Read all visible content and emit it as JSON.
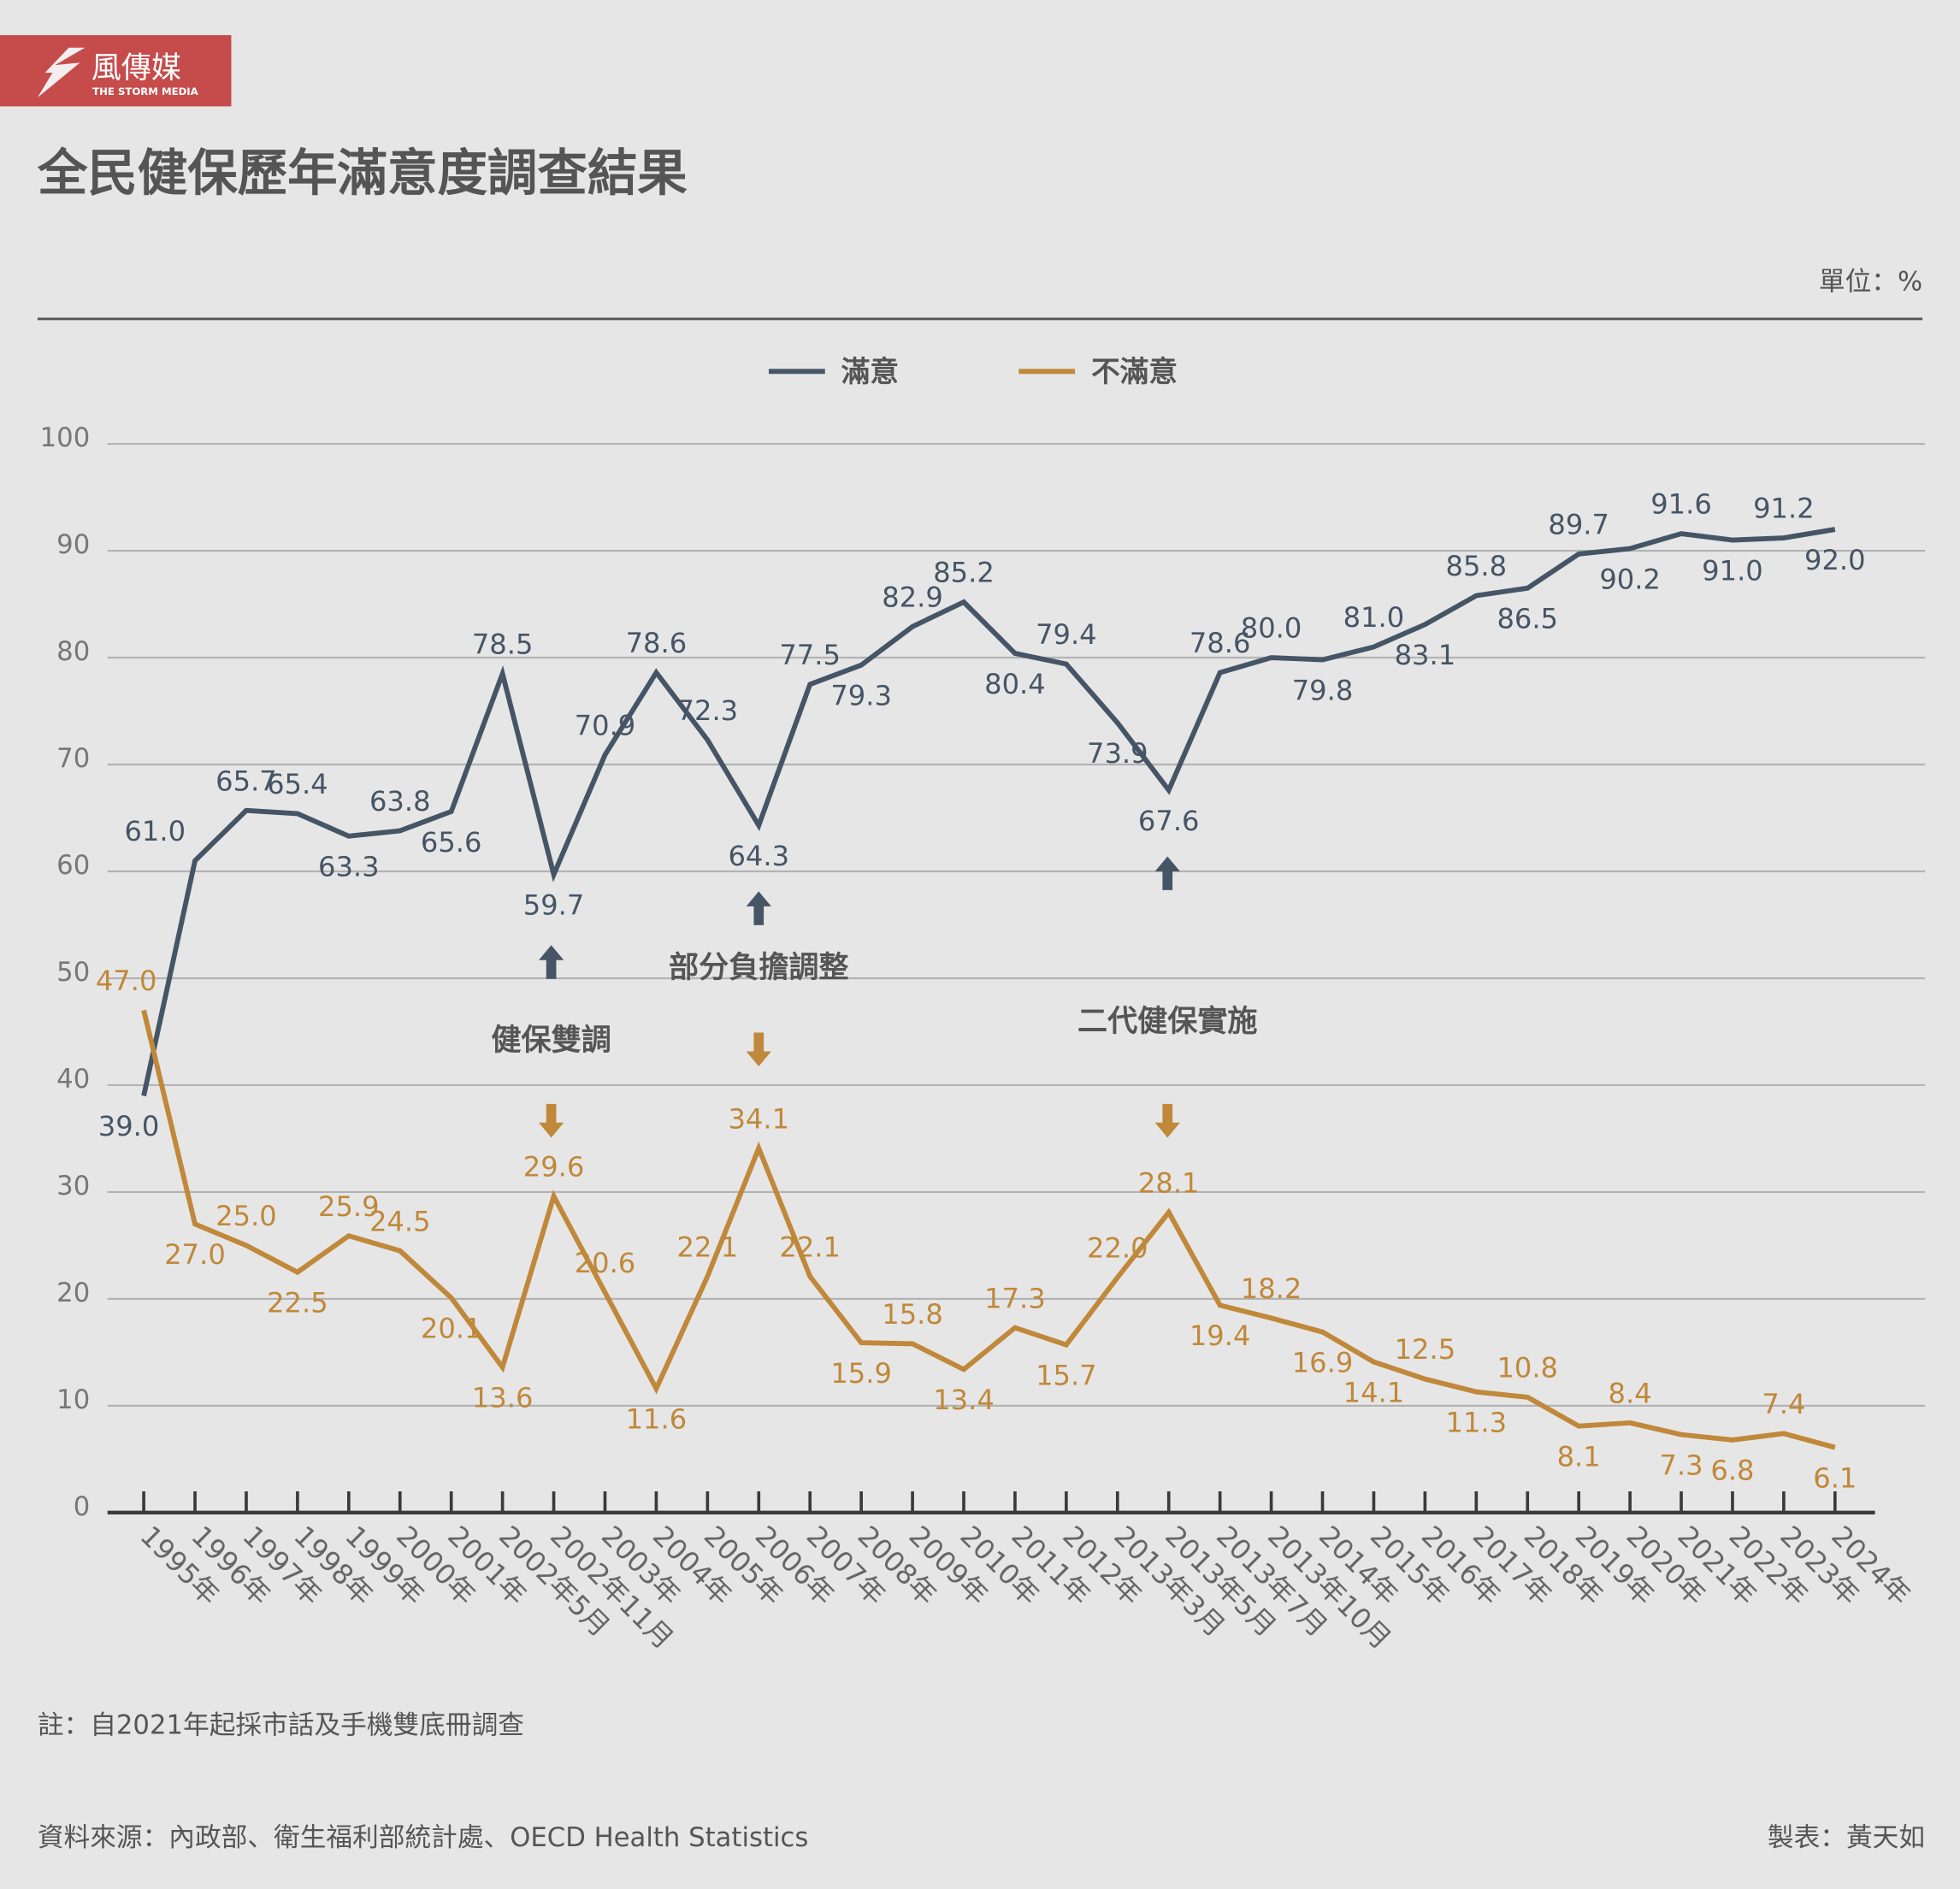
{
  "logo": {
    "name": "風傳媒",
    "subtitle": "THE STORM MEDIA",
    "color": "#c64b4b"
  },
  "title": "全民健保歷年滿意度調查結果",
  "unit": "單位：%",
  "legend": [
    {
      "label": "滿意",
      "color": "#465565"
    },
    {
      "label": "不滿意",
      "color": "#c0883a"
    }
  ],
  "annotations": [
    {
      "text": "健保雙調",
      "category": "2002年11月"
    },
    {
      "text": "部分負擔調整",
      "category": "2006年"
    },
    {
      "text": "二代健保實施",
      "category": "2013年5月"
    }
  ],
  "footnote": "註：自2021年起採市話及手機雙底冊調查",
  "source": "資料來源：內政部、衛生福利部統計處、OECD Health Statistics",
  "credit": "製表：黃天如",
  "chart_data": {
    "type": "line",
    "title": "全民健保歷年滿意度調查結果",
    "xlabel": "",
    "ylabel": "",
    "ylim": [
      0,
      100
    ],
    "yticks": [
      0,
      10,
      20,
      30,
      40,
      50,
      60,
      70,
      80,
      90,
      100
    ],
    "grid": true,
    "legend_position": "top",
    "categories": [
      "1995年",
      "1996年",
      "1997年",
      "1998年",
      "1999年",
      "2000年",
      "2001年",
      "2002年5月",
      "2002年11月",
      "2003年",
      "2004年",
      "2005年",
      "2006年",
      "2007年",
      "2008年",
      "2009年",
      "2010年",
      "2011年",
      "2012年",
      "2013年3月",
      "2013年5月",
      "2013年7月",
      "2013年10月",
      "2014年",
      "2015年",
      "2016年",
      "2017年",
      "2018年",
      "2019年",
      "2020年",
      "2021年",
      "2022年",
      "2023年",
      "2024年"
    ],
    "series": [
      {
        "name": "滿意",
        "color": "#465565",
        "values": [
          39.0,
          61.0,
          65.7,
          65.4,
          63.3,
          63.8,
          65.6,
          78.5,
          59.7,
          70.9,
          78.6,
          72.3,
          64.3,
          77.5,
          79.3,
          82.9,
          85.2,
          80.4,
          79.4,
          73.9,
          67.6,
          78.6,
          80.0,
          79.8,
          81.0,
          83.1,
          85.8,
          86.5,
          89.7,
          90.2,
          91.6,
          91.0,
          91.2,
          92.0
        ]
      },
      {
        "name": "不滿意",
        "color": "#c0883a",
        "values": [
          47.0,
          27.0,
          25.0,
          22.5,
          25.9,
          24.5,
          20.1,
          13.6,
          29.6,
          20.6,
          11.6,
          22.1,
          34.1,
          22.1,
          15.9,
          15.8,
          13.4,
          17.3,
          15.7,
          22.0,
          28.1,
          19.4,
          18.2,
          16.9,
          14.1,
          12.5,
          11.3,
          10.8,
          8.1,
          8.4,
          7.3,
          6.8,
          7.4,
          6.1
        ]
      }
    ]
  }
}
